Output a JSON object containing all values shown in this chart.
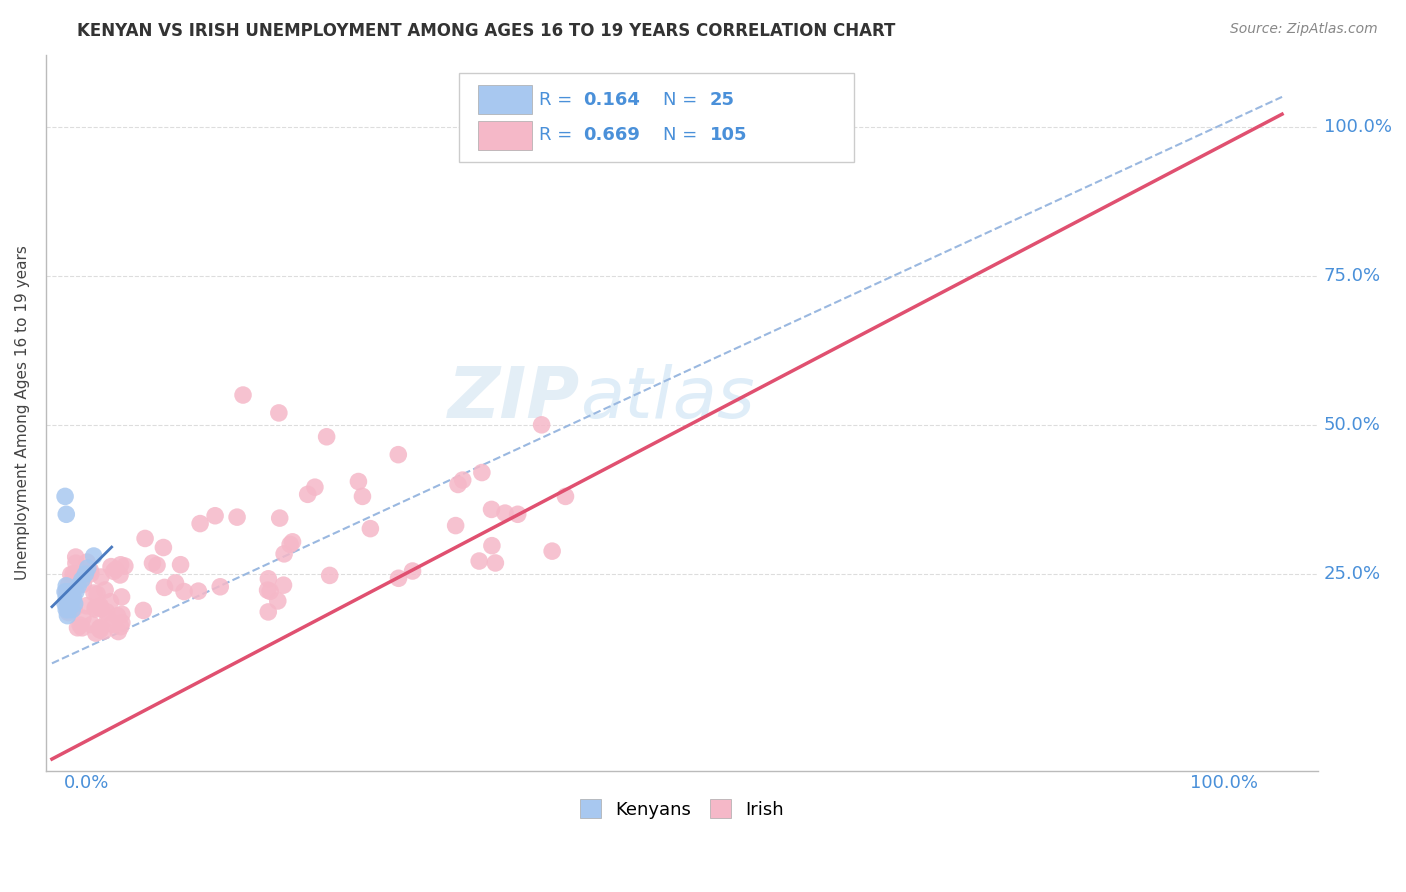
{
  "title": "KENYAN VS IRISH UNEMPLOYMENT AMONG AGES 16 TO 19 YEARS CORRELATION CHART",
  "source": "Source: ZipAtlas.com",
  "ylabel": "Unemployment Among Ages 16 to 19 years",
  "kenyan_R": 0.164,
  "kenyan_N": 25,
  "irish_R": 0.669,
  "irish_N": 105,
  "kenyan_color": "#a8c8f0",
  "irish_color": "#f5b8c8",
  "kenyan_line_color": "#4a7abf",
  "irish_line_color": "#e05070",
  "dash_line_color": "#9ab8e0",
  "watermark_color": "#cce0f0",
  "title_color": "#333333",
  "source_color": "#888888",
  "label_color": "#4a90d9",
  "grid_color": "#dddddd",
  "legend_border_color": "#cccccc"
}
